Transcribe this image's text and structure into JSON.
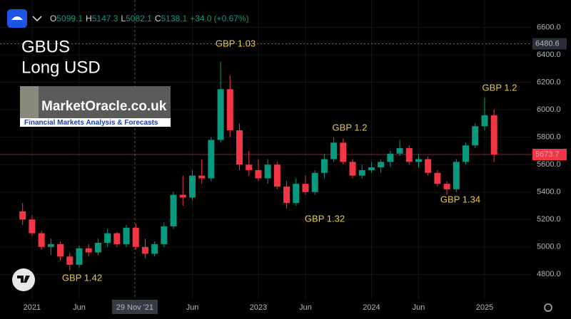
{
  "chart_data": {
    "type": "candlestick",
    "title": "GBUS",
    "subtitle": "Long USD",
    "legend_bar": {
      "open_key": "O",
      "open": 5099.1,
      "high_key": "H",
      "high": 5147.3,
      "low_key": "L",
      "low": 5082.1,
      "close_key": "C",
      "close": 5138.1,
      "change": "+34.0",
      "change_pct": "(+0.67%)"
    },
    "watermark": {
      "name": "MarketOracle.co.uk",
      "tagline": "Financial Markets Analysis & Forecasts"
    },
    "up_color": "#089981",
    "down_color": "#f23645",
    "open": [
      5260,
      5200,
      5100,
      5000,
      5020,
      4930,
      4870,
      4990,
      4960,
      5030,
      5100,
      5020,
      5140,
      5000,
      4950,
      5020,
      5150,
      5380,
      5360,
      5520,
      5500,
      5780,
      6150,
      5850,
      5600,
      5560,
      5500,
      5600,
      5440,
      5320,
      5460,
      5400,
      5540,
      5640,
      5760,
      5620,
      5520,
      5560,
      5580,
      5620,
      5680,
      5720,
      5620,
      5640,
      5540,
      5460,
      5420,
      5620,
      5740,
      5880,
      5960
    ],
    "high": [
      5320,
      5230,
      5120,
      5060,
      5040,
      4960,
      5010,
      5020,
      5060,
      5130,
      5110,
      5160,
      5170,
      5060,
      5040,
      5180,
      5400,
      5520,
      5560,
      5640,
      5800,
      6350,
      6250,
      5900,
      5700,
      5640,
      5640,
      5620,
      5480,
      5500,
      5520,
      5560,
      5680,
      5800,
      5790,
      5640,
      5600,
      5620,
      5640,
      5700,
      5780,
      5740,
      5680,
      5660,
      5560,
      5480,
      5640,
      5760,
      5900,
      6090,
      6000
    ],
    "low": [
      5160,
      5080,
      4980,
      4940,
      4900,
      4830,
      4850,
      4930,
      4940,
      5000,
      5000,
      5000,
      4980,
      4920,
      4930,
      5000,
      5130,
      5300,
      5340,
      5460,
      5480,
      5760,
      5800,
      5560,
      5520,
      5480,
      5460,
      5420,
      5280,
      5300,
      5380,
      5380,
      5500,
      5620,
      5600,
      5500,
      5500,
      5540,
      5540,
      5580,
      5660,
      5600,
      5580,
      5520,
      5440,
      5380,
      5400,
      5600,
      5720,
      5850,
      5620
    ],
    "close": [
      5200,
      5100,
      5000,
      5020,
      4930,
      4870,
      4990,
      4960,
      5030,
      5100,
      5020,
      5140,
      5000,
      4950,
      5020,
      5150,
      5380,
      5360,
      5520,
      5500,
      5780,
      6150,
      5850,
      5600,
      5560,
      5500,
      5600,
      5440,
      5320,
      5460,
      5400,
      5540,
      5640,
      5760,
      5620,
      5520,
      5560,
      5580,
      5620,
      5680,
      5720,
      5620,
      5640,
      5540,
      5460,
      5420,
      5620,
      5740,
      5880,
      5960,
      5673.7
    ],
    "xlim": [
      -2.4,
      54
    ],
    "xticks": [
      {
        "value": 1,
        "label": "2021"
      },
      {
        "value": 6,
        "label": "Jun"
      },
      {
        "value": 11.9,
        "label": "29 Nov '21"
      },
      {
        "value": 18,
        "label": "Jun"
      },
      {
        "value": 25,
        "label": "2023"
      },
      {
        "value": 30,
        "label": "Jun"
      },
      {
        "value": 37,
        "label": "2024"
      },
      {
        "value": 42,
        "label": "Jun"
      },
      {
        "value": 49,
        "label": "2025"
      }
    ],
    "crosshair_tick": 2,
    "ylim": [
      4620,
      6800
    ],
    "yticks": [
      {
        "value": 4800,
        "label": "4800.0"
      },
      {
        "value": 5000,
        "label": "5000.0"
      },
      {
        "value": 5200,
        "label": "5200.0"
      },
      {
        "value": 5400,
        "label": "5400.0"
      },
      {
        "value": 5600,
        "label": "5600.0"
      },
      {
        "value": 5800,
        "label": "5800.0"
      },
      {
        "value": 6000,
        "label": "6000.0"
      },
      {
        "value": 6200,
        "label": "6200.0"
      },
      {
        "value": 6400,
        "label": "6400.0"
      },
      {
        "value": 6600,
        "label": "6600.0"
      }
    ],
    "marker_line": 6480.6,
    "last_price": 5673.7,
    "annotations": [
      "GBP 1.03",
      "GBP 1.2",
      "GBP 1.32",
      "GBP 1.42",
      "GBP 1.34",
      "GBP 1.2"
    ]
  }
}
